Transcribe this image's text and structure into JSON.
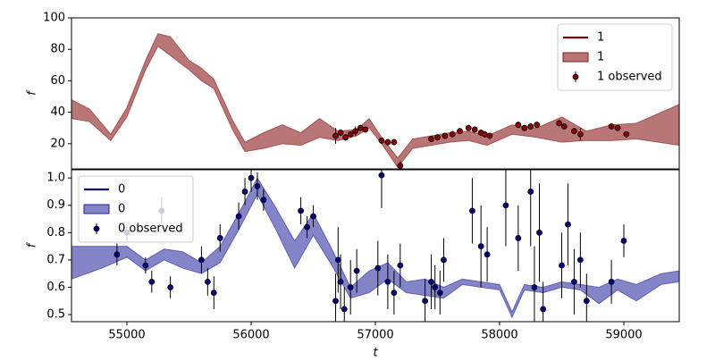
{
  "chart_data": [
    {
      "type": "line",
      "ylabel": "f",
      "xlim": [
        54554,
        59446
      ],
      "ylim": [
        4,
        100
      ],
      "yticks": [
        20,
        40,
        60,
        80,
        100
      ],
      "legend": "upper right",
      "series": [
        {
          "name": "1",
          "type": "line",
          "color": "#800000",
          "x": [
            54554,
            54700,
            54870,
            55000,
            55150,
            55250,
            55350,
            55500,
            55600,
            55700,
            55850,
            55950,
            56100,
            56250,
            56400,
            56550,
            56700,
            56850,
            56950,
            57050,
            57180,
            57300,
            57450,
            57600,
            57750,
            57900,
            58100,
            58300,
            58500,
            58700,
            58900,
            59100,
            59446
          ],
          "values": [
            42,
            38,
            24,
            40,
            70,
            86,
            82,
            70,
            64,
            58,
            32,
            18,
            22,
            26,
            23,
            30,
            25,
            27,
            33,
            22,
            8,
            20,
            22,
            24,
            25,
            22,
            29,
            27,
            29,
            25,
            27,
            28,
            32
          ]
        },
        {
          "name": "1",
          "type": "band",
          "color": "#8b1a1a",
          "alpha": 0.6,
          "x": [
            54554,
            54700,
            54870,
            55000,
            55150,
            55250,
            55350,
            55500,
            55600,
            55700,
            55850,
            55950,
            56100,
            56250,
            56400,
            56550,
            56700,
            56850,
            56950,
            57050,
            57180,
            57300,
            57450,
            57600,
            57750,
            57900,
            58100,
            58300,
            58500,
            58700,
            58900,
            59100,
            59446
          ],
          "lower": [
            36,
            34,
            22,
            37,
            67,
            82,
            76,
            67,
            60,
            55,
            29,
            15,
            17,
            20,
            19,
            24,
            22,
            25,
            30,
            20,
            5,
            17,
            19,
            21,
            22,
            19,
            26,
            24,
            21,
            22,
            22,
            23,
            19
          ],
          "upper": [
            48,
            42,
            26,
            43,
            73,
            90,
            88,
            73,
            68,
            61,
            35,
            21,
            27,
            32,
            27,
            36,
            28,
            29,
            36,
            24,
            11,
            23,
            25,
            27,
            28,
            25,
            32,
            30,
            37,
            28,
            32,
            33,
            45
          ]
        },
        {
          "name": "1 observed",
          "type": "errorbar",
          "color": "#8b0000",
          "x": [
            56680,
            56720,
            56760,
            56800,
            56840,
            56880,
            56920,
            57050,
            57100,
            57150,
            57200,
            57450,
            57500,
            57560,
            57620,
            57680,
            57750,
            57800,
            57850,
            57880,
            57920,
            58150,
            58200,
            58250,
            58300,
            58480,
            58520,
            58600,
            58650,
            58900,
            58950,
            59020
          ],
          "values": [
            25,
            27,
            24,
            26,
            28,
            30,
            29,
            22,
            21,
            21,
            6,
            23,
            24,
            25,
            26,
            28,
            30,
            29,
            27,
            26,
            25,
            32,
            30,
            31,
            32,
            33,
            31,
            28,
            26,
            31,
            30,
            26
          ],
          "errors": [
            5,
            2,
            2,
            2,
            3,
            2,
            2,
            2,
            2,
            2,
            3,
            2,
            2,
            2,
            2,
            2,
            2,
            2,
            2,
            2,
            2,
            2,
            2,
            2,
            2,
            2,
            2,
            2,
            4,
            2,
            2,
            2
          ]
        }
      ]
    },
    {
      "type": "line",
      "ylabel": "f",
      "xlabel": "t",
      "xlim": [
        54554,
        59446
      ],
      "ylim": [
        0.474,
        1.03
      ],
      "yticks": [
        0.5,
        0.6,
        0.7,
        0.8,
        0.9,
        {
          "value": 1,
          "label": "1.0"
        }
      ],
      "xticks": [
        55000,
        56000,
        57000,
        58000,
        59000
      ],
      "legend": "upper left",
      "series": [
        {
          "name": "0",
          "type": "line",
          "color": "#000080",
          "x": [
            54554,
            54800,
            55000,
            55150,
            55300,
            55450,
            55600,
            55750,
            55900,
            56050,
            56200,
            56350,
            56500,
            56650,
            56800,
            56950,
            57100,
            57250,
            57400,
            57550,
            57700,
            57850,
            58000,
            58100,
            58200,
            58350,
            58500,
            58650,
            58800,
            58950,
            59100,
            59300,
            59446
          ],
          "values": [
            0.69,
            0.71,
            0.73,
            0.68,
            0.72,
            0.7,
            0.67,
            0.72,
            0.84,
            0.97,
            0.85,
            0.72,
            0.83,
            0.71,
            0.58,
            0.62,
            0.66,
            0.6,
            0.6,
            0.58,
            0.62,
            0.61,
            0.6,
            0.5,
            0.6,
            0.59,
            0.61,
            0.6,
            0.57,
            0.61,
            0.58,
            0.63,
            0.64
          ]
        },
        {
          "name": "0",
          "type": "band",
          "color": "#1f1f9a",
          "alpha": 0.55,
          "x": [
            54554,
            54800,
            55000,
            55150,
            55300,
            55450,
            55600,
            55750,
            55900,
            56050,
            56200,
            56350,
            56500,
            56650,
            56800,
            56950,
            57100,
            57250,
            57400,
            57550,
            57700,
            57850,
            58000,
            58100,
            58200,
            58350,
            58500,
            58650,
            58800,
            58950,
            59100,
            59300,
            59446
          ],
          "lower": [
            0.63,
            0.67,
            0.71,
            0.66,
            0.7,
            0.67,
            0.65,
            0.69,
            0.81,
            0.94,
            0.81,
            0.67,
            0.79,
            0.68,
            0.56,
            0.58,
            0.63,
            0.58,
            0.57,
            0.56,
            0.61,
            0.6,
            0.59,
            0.49,
            0.59,
            0.58,
            0.6,
            0.59,
            0.54,
            0.59,
            0.55,
            0.61,
            0.62
          ],
          "upper": [
            0.75,
            0.75,
            0.75,
            0.7,
            0.74,
            0.73,
            0.69,
            0.75,
            0.87,
            1.0,
            0.89,
            0.77,
            0.87,
            0.74,
            0.6,
            0.66,
            0.69,
            0.62,
            0.63,
            0.6,
            0.63,
            0.62,
            0.61,
            0.51,
            0.61,
            0.6,
            0.62,
            0.61,
            0.6,
            0.63,
            0.61,
            0.65,
            0.66
          ]
        },
        {
          "name": "0 observed",
          "type": "errorbar",
          "color": "#000080",
          "x": [
            54920,
            55000,
            55150,
            55200,
            55280,
            55350,
            55600,
            55650,
            55700,
            55750,
            55900,
            55950,
            56000,
            56050,
            56100,
            56400,
            56450,
            56500,
            56680,
            56700,
            56720,
            56750,
            56800,
            56850,
            57020,
            57050,
            57100,
            57150,
            57200,
            57400,
            57450,
            57480,
            57520,
            57550,
            57780,
            57850,
            57900,
            58050,
            58150,
            58250,
            58280,
            58320,
            58350,
            58500,
            58550,
            58600,
            58650,
            58700,
            58900,
            59000
          ],
          "values": [
            0.72,
            0.8,
            0.68,
            0.62,
            0.88,
            0.6,
            0.7,
            0.62,
            0.58,
            0.78,
            0.86,
            0.95,
            1.0,
            0.97,
            0.92,
            0.88,
            0.82,
            0.86,
            0.55,
            0.7,
            0.62,
            0.52,
            0.6,
            0.66,
            0.67,
            1.01,
            0.62,
            0.58,
            0.68,
            0.55,
            0.62,
            0.6,
            0.58,
            0.7,
            0.88,
            0.75,
            0.72,
            0.9,
            0.78,
            0.95,
            0.6,
            0.8,
            0.52,
            0.68,
            0.83,
            0.62,
            0.7,
            0.55,
            0.62,
            0.77
          ],
          "errors": [
            0.04,
            0.03,
            0.03,
            0.04,
            0.05,
            0.04,
            0.05,
            0.05,
            0.06,
            0.05,
            0.05,
            0.05,
            0.05,
            0.05,
            0.04,
            0.05,
            0.04,
            0.04,
            0.1,
            0.12,
            0.1,
            0.08,
            0.1,
            0.08,
            0.1,
            0.12,
            0.1,
            0.08,
            0.08,
            0.08,
            0.1,
            0.08,
            0.08,
            0.08,
            0.12,
            0.15,
            0.1,
            0.15,
            0.12,
            0.2,
            0.15,
            0.18,
            0.1,
            0.12,
            0.15,
            0.12,
            0.1,
            0.1,
            0.08,
            0.06
          ]
        }
      ]
    }
  ]
}
